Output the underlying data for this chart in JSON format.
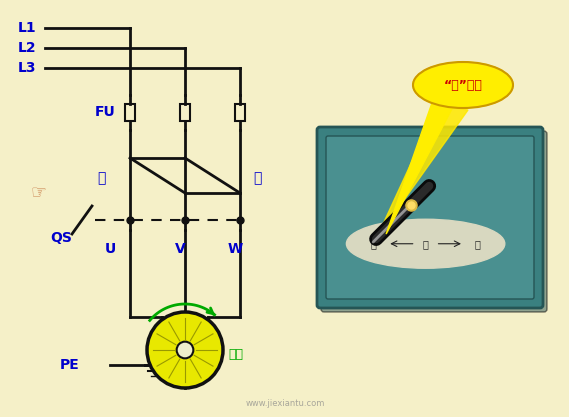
{
  "bg_color": "#F5F0C8",
  "line_color": "#111111",
  "blue_color": "#0000CC",
  "green_color": "#00AA00",
  "teal_color": "#3A7A7A",
  "labels": {
    "L1": "L1",
    "L2": "L2",
    "L3": "L3",
    "FU": "FU",
    "QS": "QS",
    "PE": "PE",
    "U": "U",
    "V": "V",
    "W": "W",
    "shun": "顺",
    "dao": "倒",
    "zhengzhuan": "正转",
    "shun_pos": "“顺”位置",
    "shun_label2": "顺",
    "stop_label": "停",
    "dao_label": "倒"
  }
}
